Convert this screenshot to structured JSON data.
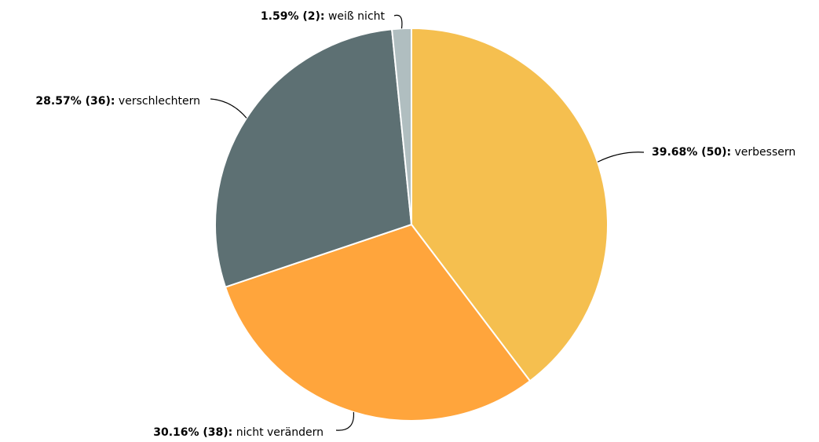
{
  "chart_data": {
    "type": "pie",
    "categories": [
      "verbessern",
      "nicht verändern",
      "verschlechtern",
      "weiß nicht"
    ],
    "values": [
      39.68,
      30.16,
      28.57,
      1.59
    ],
    "value_labels": [
      "39.68% (50):",
      "30.16% (38):",
      "28.57% (36):",
      "1.59% (2):"
    ],
    "colors": [
      "#f5bf4f",
      "#ffa53c",
      "#5d7073",
      "#b0bec0"
    ]
  }
}
